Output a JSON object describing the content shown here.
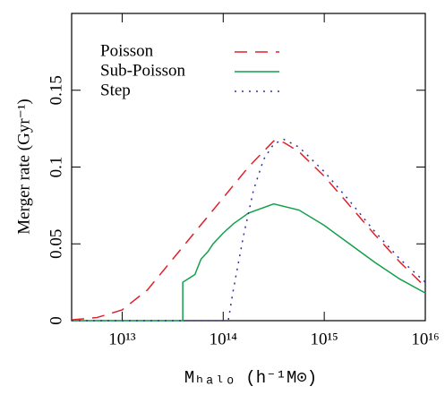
{
  "chart_data": {
    "type": "line",
    "xlabel": "Mₕₐₗₒ (h⁻¹M⊙)",
    "ylabel": "Merger rate (Gyr⁻¹)",
    "xscale": "log",
    "xlim": [
      3162000000000.0,
      1e+16
    ],
    "xticks": [
      {
        "value": 10000000000000.0,
        "label": "10¹³"
      },
      {
        "value": 100000000000000.0,
        "label": "10¹⁴"
      },
      {
        "value": 1000000000000000.0,
        "label": "10¹⁵"
      },
      {
        "value": 1e+16,
        "label": "10¹⁶"
      }
    ],
    "ylim": [
      0,
      0.2
    ],
    "yticks": [
      0,
      0.05,
      0.1,
      0.15
    ],
    "legend": "upper left",
    "series": [
      {
        "name": "Poisson",
        "color": "#e0202a",
        "linestyle": "dashed",
        "x": [
          3162000000000.0,
          5623000000000.0,
          10000000000000.0,
          17780000000000.0,
          31620000000000.0,
          56230000000000.0,
          100000000000000.0,
          177800000000000.0,
          316200000000000.0,
          398100000000000.0,
          562300000000000.0,
          1000000000000000.0,
          1778000000000000.0,
          3162000000000000.0,
          5623000000000000.0,
          1e+16
        ],
        "values": [
          0.0005,
          0.002,
          0.007,
          0.02,
          0.04,
          0.06,
          0.08,
          0.1,
          0.117,
          0.116,
          0.11,
          0.094,
          0.075,
          0.056,
          0.038,
          0.022
        ]
      },
      {
        "name": "Sub-Poisson",
        "color": "#12a04a",
        "linestyle": "solid",
        "x": [
          3162000000000.0,
          39810000000000.0,
          39810000000000.0,
          52480000000000.0,
          60260000000000.0,
          70790000000000.0,
          79430000000000.0,
          100000000000000.0,
          125900000000000.0,
          177800000000000.0,
          316200000000000.0,
          562300000000000.0,
          1000000000000000.0,
          1778000000000000.0,
          3162000000000000.0,
          5623000000000000.0,
          1e+16
        ],
        "values": [
          0,
          0,
          0.025,
          0.03,
          0.04,
          0.045,
          0.05,
          0.057,
          0.063,
          0.07,
          0.076,
          0.072,
          0.062,
          0.05,
          0.038,
          0.027,
          0.018
        ]
      },
      {
        "name": "Step",
        "color": "#3030a0",
        "linestyle": "dotted",
        "x": [
          3162000000000.0,
          112200000000000.0,
          125900000000000.0,
          158500000000000.0,
          199500000000000.0,
          251200000000000.0,
          316200000000000.0,
          398100000000000.0,
          562300000000000.0,
          1000000000000000.0,
          1778000000000000.0,
          3162000000000000.0,
          5623000000000000.0,
          1e+16
        ],
        "values": [
          0,
          0,
          0.02,
          0.055,
          0.085,
          0.105,
          0.115,
          0.118,
          0.113,
          0.097,
          0.078,
          0.058,
          0.04,
          0.025
        ]
      }
    ]
  }
}
